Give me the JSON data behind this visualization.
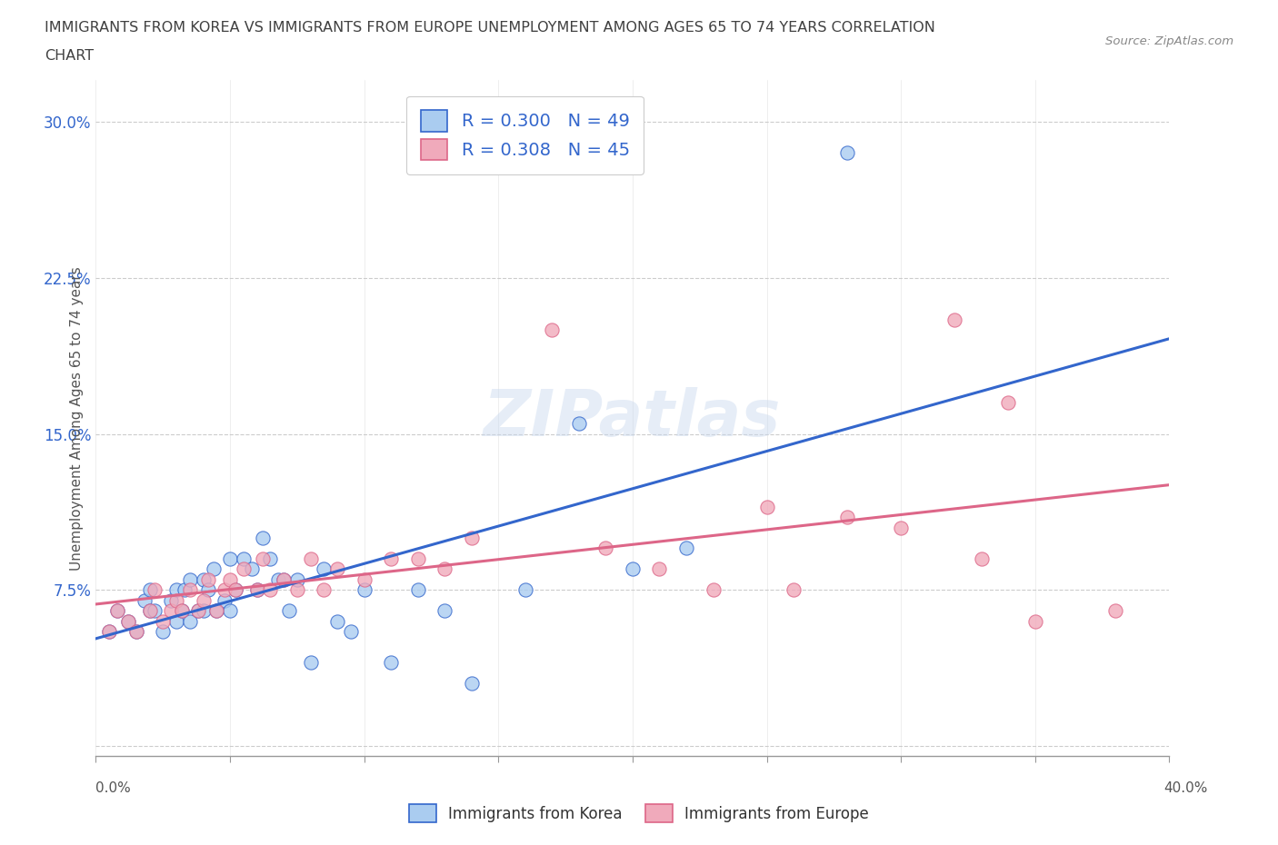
{
  "title_line1": "IMMIGRANTS FROM KOREA VS IMMIGRANTS FROM EUROPE UNEMPLOYMENT AMONG AGES 65 TO 74 YEARS CORRELATION",
  "title_line2": "CHART",
  "source_text": "Source: ZipAtlas.com",
  "ylabel": "Unemployment Among Ages 65 to 74 years",
  "xlim": [
    0.0,
    0.4
  ],
  "ylim": [
    -0.005,
    0.32
  ],
  "xticks": [
    0.0,
    0.05,
    0.1,
    0.15,
    0.2,
    0.25,
    0.3,
    0.35,
    0.4
  ],
  "yticks": [
    0.0,
    0.075,
    0.15,
    0.225,
    0.3
  ],
  "yticklabels": [
    "",
    "7.5%",
    "15.0%",
    "22.5%",
    "30.0%"
  ],
  "korea_R": 0.3,
  "korea_N": 49,
  "europe_R": 0.308,
  "europe_N": 45,
  "korea_color": "#aaccf0",
  "europe_color": "#f0aabb",
  "trend_korea_color": "#3366cc",
  "trend_europe_color": "#dd6688",
  "watermark": "ZIPatlas",
  "legend_korea": "Immigrants from Korea",
  "legend_europe": "Immigrants from Europe",
  "korea_x": [
    0.005,
    0.008,
    0.012,
    0.015,
    0.018,
    0.02,
    0.02,
    0.022,
    0.025,
    0.028,
    0.03,
    0.03,
    0.032,
    0.033,
    0.035,
    0.035,
    0.038,
    0.04,
    0.04,
    0.042,
    0.044,
    0.045,
    0.048,
    0.05,
    0.05,
    0.052,
    0.055,
    0.058,
    0.06,
    0.062,
    0.065,
    0.068,
    0.07,
    0.072,
    0.075,
    0.08,
    0.085,
    0.09,
    0.095,
    0.1,
    0.11,
    0.12,
    0.13,
    0.14,
    0.16,
    0.18,
    0.2,
    0.22,
    0.28
  ],
  "korea_y": [
    0.055,
    0.065,
    0.06,
    0.055,
    0.07,
    0.065,
    0.075,
    0.065,
    0.055,
    0.07,
    0.06,
    0.075,
    0.065,
    0.075,
    0.06,
    0.08,
    0.065,
    0.065,
    0.08,
    0.075,
    0.085,
    0.065,
    0.07,
    0.065,
    0.09,
    0.075,
    0.09,
    0.085,
    0.075,
    0.1,
    0.09,
    0.08,
    0.08,
    0.065,
    0.08,
    0.04,
    0.085,
    0.06,
    0.055,
    0.075,
    0.04,
    0.075,
    0.065,
    0.03,
    0.075,
    0.155,
    0.085,
    0.095,
    0.285
  ],
  "europe_x": [
    0.005,
    0.008,
    0.012,
    0.015,
    0.02,
    0.022,
    0.025,
    0.028,
    0.03,
    0.032,
    0.035,
    0.038,
    0.04,
    0.042,
    0.045,
    0.048,
    0.05,
    0.052,
    0.055,
    0.06,
    0.062,
    0.065,
    0.07,
    0.075,
    0.08,
    0.085,
    0.09,
    0.1,
    0.11,
    0.12,
    0.13,
    0.14,
    0.17,
    0.19,
    0.21,
    0.23,
    0.25,
    0.26,
    0.28,
    0.3,
    0.32,
    0.33,
    0.34,
    0.35,
    0.38
  ],
  "europe_y": [
    0.055,
    0.065,
    0.06,
    0.055,
    0.065,
    0.075,
    0.06,
    0.065,
    0.07,
    0.065,
    0.075,
    0.065,
    0.07,
    0.08,
    0.065,
    0.075,
    0.08,
    0.075,
    0.085,
    0.075,
    0.09,
    0.075,
    0.08,
    0.075,
    0.09,
    0.075,
    0.085,
    0.08,
    0.09,
    0.09,
    0.085,
    0.1,
    0.2,
    0.095,
    0.085,
    0.075,
    0.115,
    0.075,
    0.11,
    0.105,
    0.205,
    0.09,
    0.165,
    0.06,
    0.065
  ],
  "grid_color": "#cccccc",
  "bg_color": "#ffffff",
  "title_color": "#404040",
  "axis_label_color": "#555555",
  "ytick_color": "#3366cc"
}
